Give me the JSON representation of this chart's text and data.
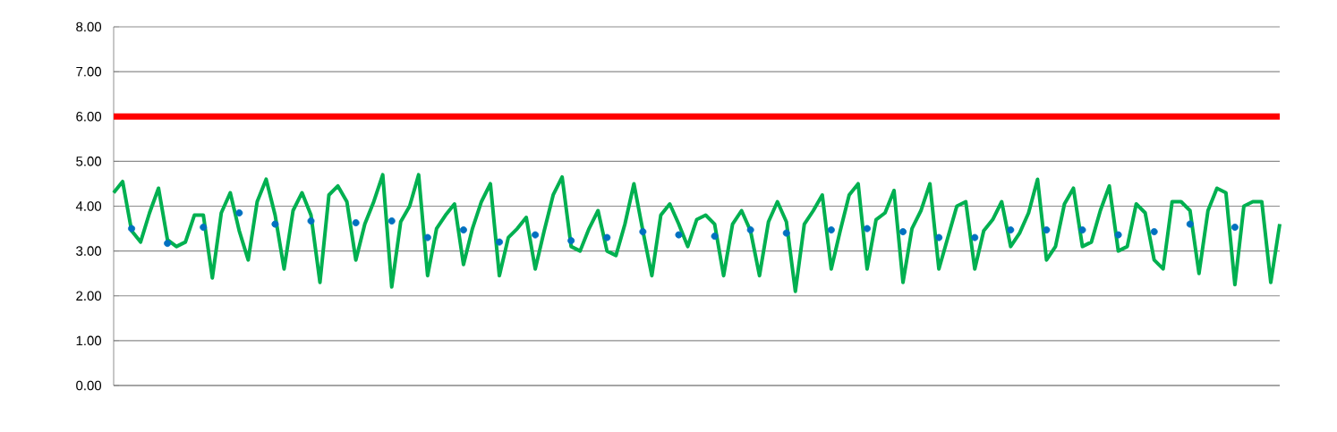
{
  "chart_data": {
    "type": "line",
    "categories": [
      null,
      null,
      null,
      null,
      null,
      null,
      null,
      null,
      null,
      null,
      null,
      null,
      null,
      null,
      null,
      null,
      null,
      null,
      null,
      null,
      null,
      null,
      null,
      null,
      null,
      null,
      null,
      null,
      null,
      null,
      null,
      null,
      null,
      null,
      null,
      null,
      null,
      null,
      null,
      null,
      null,
      null,
      null,
      null,
      null,
      null,
      null,
      null,
      null,
      null,
      null,
      null,
      null,
      null,
      null,
      null,
      null,
      null,
      null,
      null,
      null,
      null,
      null,
      null,
      null,
      null,
      null,
      null,
      null,
      null,
      null,
      null,
      null,
      null,
      null,
      null,
      null,
      null,
      null,
      null,
      null,
      null,
      null,
      null,
      null,
      null,
      null,
      null,
      null,
      null,
      null,
      null,
      null,
      null,
      null,
      null,
      null,
      null,
      null,
      null,
      null,
      null,
      null,
      null,
      null,
      null,
      null,
      null,
      null,
      null,
      null,
      null,
      null,
      null,
      null,
      null,
      null,
      null,
      null,
      null,
      null,
      null,
      null,
      null,
      null,
      null,
      null,
      null,
      null,
      null,
      null
    ],
    "series": [
      {
        "color": "#00b050",
        "marker": "none",
        "line_style": "solid",
        "values": [
          4.3,
          4.55,
          3.45,
          3.2,
          3.85,
          4.4,
          3.25,
          3.1,
          3.2,
          3.8,
          3.8,
          2.4,
          3.85,
          4.3,
          3.45,
          2.8,
          4.1,
          4.6,
          3.8,
          2.6,
          3.9,
          4.3,
          3.8,
          2.3,
          4.25,
          4.45,
          4.1,
          2.8,
          3.6,
          4.1,
          4.7,
          2.2,
          3.65,
          4.0,
          4.7,
          2.45,
          3.5,
          3.8,
          4.05,
          2.7,
          3.5,
          4.1,
          4.5,
          2.45,
          3.3,
          3.5,
          3.75,
          2.6,
          3.45,
          4.25,
          4.65,
          3.1,
          3.0,
          3.5,
          3.9,
          3.0,
          2.9,
          3.6,
          4.5,
          3.45,
          2.45,
          3.8,
          4.05,
          3.6,
          3.1,
          3.7,
          3.8,
          3.6,
          2.45,
          3.6,
          3.9,
          3.45,
          2.45,
          3.65,
          4.1,
          3.65,
          2.1,
          3.6,
          3.9,
          4.25,
          2.6,
          3.45,
          4.25,
          4.5,
          2.6,
          3.7,
          3.85,
          4.35,
          2.3,
          3.5,
          3.9,
          4.5,
          2.6,
          3.3,
          4.0,
          4.1,
          2.6,
          3.45,
          3.7,
          4.1,
          3.1,
          3.4,
          3.85,
          4.6,
          2.8,
          3.1,
          4.05,
          4.4,
          3.1,
          3.2,
          3.9,
          4.45,
          3.0,
          3.1,
          4.05,
          3.85,
          2.8,
          2.6,
          4.1,
          4.1,
          3.9,
          2.5,
          3.9,
          4.4,
          4.3,
          2.25,
          4.0,
          4.1,
          4.1,
          2.3,
          3.6
        ]
      },
      {
        "type": "scatter",
        "color": "#0070c0",
        "marker": "circle",
        "values": [
          null,
          null,
          3.5,
          null,
          null,
          null,
          3.17,
          null,
          null,
          null,
          3.53,
          null,
          null,
          null,
          3.85,
          null,
          null,
          null,
          3.6,
          null,
          null,
          null,
          3.67,
          null,
          null,
          null,
          null,
          3.63,
          null,
          null,
          null,
          3.67,
          null,
          null,
          null,
          3.3,
          null,
          null,
          null,
          3.47,
          null,
          null,
          null,
          3.2,
          null,
          null,
          null,
          3.36,
          null,
          null,
          null,
          3.23,
          null,
          null,
          null,
          3.3,
          null,
          null,
          null,
          3.43,
          null,
          null,
          null,
          3.36,
          null,
          null,
          null,
          3.33,
          null,
          null,
          null,
          3.47,
          null,
          null,
          null,
          3.4,
          null,
          null,
          null,
          null,
          3.47,
          null,
          null,
          null,
          3.5,
          null,
          null,
          null,
          3.43,
          null,
          null,
          null,
          3.3,
          null,
          null,
          null,
          3.3,
          null,
          null,
          null,
          3.47,
          null,
          null,
          null,
          3.47,
          null,
          null,
          null,
          3.47,
          null,
          null,
          null,
          3.36,
          null,
          null,
          null,
          3.43,
          null,
          null,
          null,
          3.6,
          null,
          null,
          null,
          null,
          3.53,
          null,
          null,
          null,
          null,
          null
        ]
      }
    ],
    "ylim": [
      0,
      8
    ],
    "yticks": [
      {
        "value": 0,
        "label": "0.00"
      },
      {
        "value": 1,
        "label": "1.00"
      },
      {
        "value": 2,
        "label": "2.00"
      },
      {
        "value": 3,
        "label": "3.00"
      },
      {
        "value": 4,
        "label": "4.00"
      },
      {
        "value": 5,
        "label": "5.00"
      },
      {
        "value": 6,
        "label": "6.00"
      },
      {
        "value": 7,
        "label": "7.00"
      },
      {
        "value": 8,
        "label": "8.00"
      }
    ],
    "grid": "y",
    "ref_lines": [
      {
        "axis": "y",
        "value": 6,
        "color": "#ff0000"
      }
    ]
  }
}
